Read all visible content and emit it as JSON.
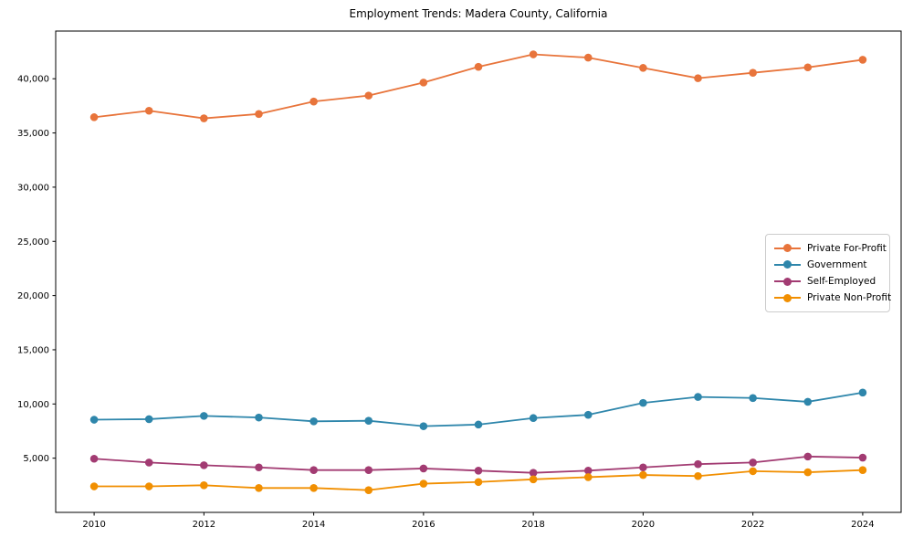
{
  "chart_data": {
    "type": "line",
    "title": "Employment Trends: Madera County, California",
    "xlabel": "",
    "ylabel": "",
    "x": [
      2010,
      2011,
      2012,
      2013,
      2014,
      2015,
      2016,
      2017,
      2018,
      2019,
      2020,
      2021,
      2022,
      2023,
      2024
    ],
    "series": [
      {
        "name": "Private For-Profit",
        "color": "#E8743B",
        "values": [
          36450,
          37050,
          36350,
          36750,
          37900,
          38450,
          39650,
          41100,
          42250,
          41950,
          41000,
          40050,
          40550,
          41050,
          41750
        ]
      },
      {
        "name": "Government",
        "color": "#2E86AB",
        "values": [
          8550,
          8600,
          8900,
          8750,
          8400,
          8450,
          7950,
          8100,
          8700,
          9000,
          10100,
          10650,
          10550,
          10200,
          11050
        ]
      },
      {
        "name": "Self-Employed",
        "color": "#A23B72",
        "values": [
          4950,
          4600,
          4350,
          4150,
          3900,
          3900,
          4050,
          3850,
          3650,
          3850,
          4150,
          4450,
          4600,
          5150,
          5050
        ]
      },
      {
        "name": "Private Non-Profit",
        "color": "#F18F01",
        "values": [
          2400,
          2400,
          2500,
          2250,
          2250,
          2050,
          2650,
          2800,
          3050,
          3250,
          3450,
          3350,
          3800,
          3700,
          3900
        ]
      }
    ],
    "xlim": [
      2009.3,
      2024.7
    ],
    "ylim": [
      0,
      44400
    ],
    "xticks": [
      2010,
      2012,
      2014,
      2016,
      2018,
      2020,
      2022,
      2024
    ],
    "yticks": [
      {
        "value": 5000,
        "label": "5,000"
      },
      {
        "value": 10000,
        "label": "10,000"
      },
      {
        "value": 15000,
        "label": "15,000"
      },
      {
        "value": 20000,
        "label": "20,000"
      },
      {
        "value": 25000,
        "label": "25,000"
      },
      {
        "value": 30000,
        "label": "30,000"
      },
      {
        "value": 35000,
        "label": "35,000"
      },
      {
        "value": 40000,
        "label": "40,000"
      }
    ],
    "grid": false,
    "legend_position": "center-right",
    "spine_color": "#000000",
    "tick_label_color": "#000000"
  }
}
